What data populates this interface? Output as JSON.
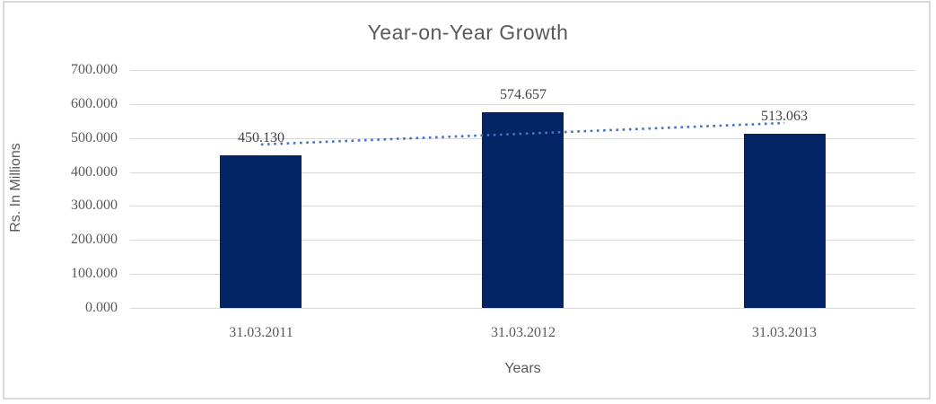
{
  "chart_data": {
    "type": "bar",
    "title": "Year-on-Year Growth",
    "xlabel": "Years",
    "ylabel": "Rs. In Millions",
    "categories": [
      "31.03.2011",
      "31.03.2012",
      "31.03.2013"
    ],
    "values": [
      450130,
      574657,
      513063
    ],
    "value_labels": [
      "450.130",
      "574.657",
      "513.063"
    ],
    "ylim": [
      0,
      700000
    ],
    "ytick_step": 100000,
    "ytick_labels": [
      "0.000",
      "100.000",
      "200.000",
      "300.000",
      "400.000",
      "500.000",
      "600.000",
      "700.000"
    ],
    "grid": true,
    "legend": false,
    "trendline": {
      "type": "linear",
      "style": "dotted",
      "color": "#4472c4"
    },
    "colors": {
      "bar": "#032566",
      "gridline": "#d9d9d9",
      "tick_text": "#595959",
      "data_label_text": "#404040",
      "title_text": "#595959",
      "axis_title_text": "#595959",
      "frame_border": "#d9d9d9",
      "background": "#ffffff"
    }
  }
}
